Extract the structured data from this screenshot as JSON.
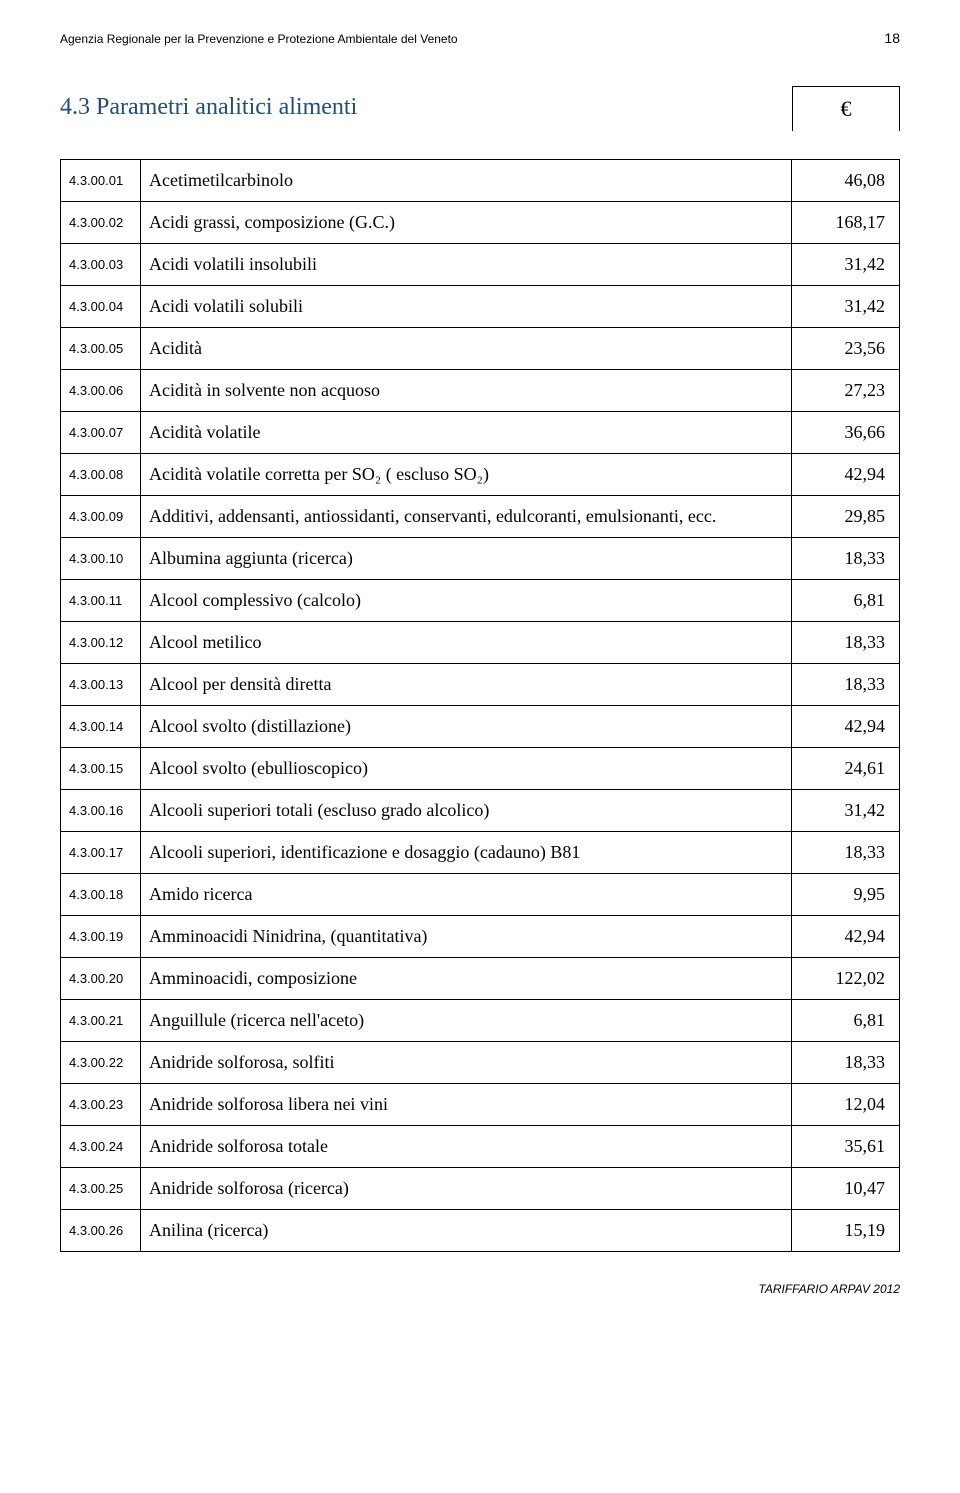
{
  "header": {
    "organization": "Agenzia Regionale per la Prevenzione e Protezione Ambientale del Veneto",
    "page_number": "18"
  },
  "section": {
    "title": "4.3 Parametri analitici alimenti",
    "currency_symbol": "€"
  },
  "rows": [
    {
      "code": "4.3.00.01",
      "desc": "Acetimetilcarbinolo",
      "value": "46,08"
    },
    {
      "code": "4.3.00.02",
      "desc": "Acidi grassi, composizione (G.C.)",
      "value": "168,17"
    },
    {
      "code": "4.3.00.03",
      "desc": "Acidi volatili insolubili",
      "value": "31,42"
    },
    {
      "code": "4.3.00.04",
      "desc": "Acidi volatili solubili",
      "value": "31,42"
    },
    {
      "code": "4.3.00.05",
      "desc": "Acidità",
      "value": "23,56"
    },
    {
      "code": "4.3.00.06",
      "desc": "Acidità in solvente non acquoso",
      "value": "27,23"
    },
    {
      "code": "4.3.00.07",
      "desc": "Acidità volatile",
      "value": "36,66"
    },
    {
      "code": "4.3.00.08",
      "desc": "Acidità volatile corretta per SO₂ ( escluso SO₂)",
      "value": "42,94"
    },
    {
      "code": "4.3.00.09",
      "desc": "Additivi, addensanti, antiossidanti, conservanti, edulcoranti, emulsionanti, ecc.",
      "value": "29,85"
    },
    {
      "code": "4.3.00.10",
      "desc": "Albumina aggiunta (ricerca)",
      "value": "18,33"
    },
    {
      "code": "4.3.00.11",
      "desc": "Alcool complessivo (calcolo)",
      "value": "6,81"
    },
    {
      "code": "4.3.00.12",
      "desc": "Alcool metilico",
      "value": "18,33"
    },
    {
      "code": "4.3.00.13",
      "desc": "Alcool per densità diretta",
      "value": "18,33"
    },
    {
      "code": "4.3.00.14",
      "desc": "Alcool svolto (distillazione)",
      "value": "42,94"
    },
    {
      "code": "4.3.00.15",
      "desc": "Alcool svolto (ebullioscopico)",
      "value": "24,61"
    },
    {
      "code": "4.3.00.16",
      "desc": "Alcooli superiori totali (escluso grado alcolico)",
      "value": "31,42"
    },
    {
      "code": "4.3.00.17",
      "desc": "Alcooli superiori, identificazione e dosaggio (cadauno)   B81",
      "value": "18,33"
    },
    {
      "code": "4.3.00.18",
      "desc": "Amido ricerca",
      "value": "9,95"
    },
    {
      "code": "4.3.00.19",
      "desc": "Amminoacidi Ninidrina, (quantitativa)",
      "value": "42,94"
    },
    {
      "code": "4.3.00.20",
      "desc": "Amminoacidi, composizione",
      "value": "122,02"
    },
    {
      "code": "4.3.00.21",
      "desc": "Anguillule (ricerca nell'aceto)",
      "value": "6,81"
    },
    {
      "code": "4.3.00.22",
      "desc": "Anidride solforosa, solfiti",
      "value": "18,33"
    },
    {
      "code": "4.3.00.23",
      "desc": "Anidride solforosa libera nei vini",
      "value": "12,04"
    },
    {
      "code": "4.3.00.24",
      "desc": "Anidride solforosa totale",
      "value": "35,61"
    },
    {
      "code": "4.3.00.25",
      "desc": "Anidride solforosa (ricerca)",
      "value": "10,47"
    },
    {
      "code": "4.3.00.26",
      "desc": "Anilina (ricerca)",
      "value": "15,19"
    }
  ],
  "footer": {
    "text": "TARIFFARIO ARPAV 2012"
  },
  "styling": {
    "title_color": "#1f4e79",
    "border_color": "#000000",
    "background_color": "#ffffff",
    "text_color": "#000000",
    "header_fontsize": 12,
    "title_fontsize": 24,
    "desc_fontsize": 18,
    "code_fontsize": 13,
    "value_fontsize": 18,
    "euro_fontsize": 22,
    "code_col_width": 80,
    "value_col_width": 108,
    "font_family_main": "Georgia, serif",
    "font_family_small": "Arial, sans-serif"
  }
}
